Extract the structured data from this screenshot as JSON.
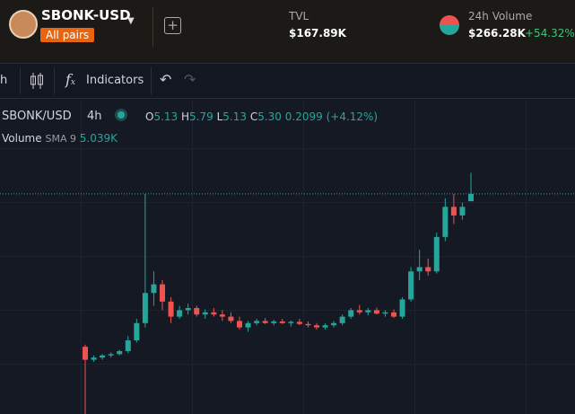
{
  "header": {
    "pair": "SBONK-USD",
    "badge": "All pairs",
    "tvl_label": "TVL",
    "tvl": "$167.89K",
    "volume_label": "24h Volume",
    "volume": "$266.28K",
    "volume_change": "+54.32%"
  },
  "toolbar": {
    "interval": "h",
    "indicators": "Indicators"
  },
  "legend": {
    "symbol": "SBONK/USD",
    "interval": "4h",
    "o_label": "O",
    "o": "5.13",
    "h_label": "H",
    "h": "5.79",
    "l_label": "L",
    "l": "5.13",
    "c_label": "C",
    "c": "5.30",
    "change": "0.2099",
    "change_pct": "(+4.12%)",
    "volume_label": "Volume",
    "sma": "SMA 9",
    "sma_value": "5.039K"
  },
  "chart_data": {
    "type": "candlestick",
    "open": [
      1.75,
      1.45,
      1.5,
      1.55,
      1.58,
      1.65,
      1.9,
      2.3,
      3.0,
      3.2,
      2.8,
      2.45,
      2.6,
      2.65,
      2.5,
      2.55,
      2.5,
      2.45,
      2.35,
      2.2,
      2.3,
      2.35,
      2.3,
      2.34,
      2.3,
      2.33,
      2.28,
      2.25,
      2.2,
      2.25,
      2.3,
      2.45,
      2.6,
      2.55,
      2.6,
      2.52,
      2.55,
      2.45,
      2.85,
      3.5,
      3.6,
      3.5,
      4.3,
      5.0,
      4.8,
      5.13
    ],
    "high": [
      1.8,
      1.55,
      1.58,
      1.62,
      1.68,
      2.0,
      2.4,
      5.3,
      3.5,
      3.3,
      2.9,
      2.7,
      2.75,
      2.7,
      2.62,
      2.65,
      2.6,
      2.55,
      2.45,
      2.35,
      2.4,
      2.42,
      2.38,
      2.4,
      2.36,
      2.4,
      2.34,
      2.3,
      2.3,
      2.35,
      2.5,
      2.65,
      2.72,
      2.65,
      2.66,
      2.6,
      2.62,
      2.9,
      3.6,
      4.0,
      3.8,
      4.4,
      5.2,
      5.3,
      5.1,
      5.79
    ],
    "low": [
      0.19,
      1.4,
      1.45,
      1.5,
      1.55,
      1.6,
      1.85,
      2.2,
      2.7,
      2.6,
      2.3,
      2.4,
      2.5,
      2.45,
      2.4,
      2.45,
      2.35,
      2.3,
      2.15,
      2.1,
      2.25,
      2.28,
      2.25,
      2.28,
      2.22,
      2.25,
      2.2,
      2.15,
      2.15,
      2.2,
      2.25,
      2.4,
      2.5,
      2.48,
      2.5,
      2.45,
      2.42,
      2.4,
      2.8,
      3.3,
      3.4,
      3.45,
      4.2,
      4.6,
      4.7,
      5.13
    ],
    "close": [
      1.45,
      1.5,
      1.55,
      1.58,
      1.65,
      1.9,
      2.3,
      3.0,
      3.2,
      2.8,
      2.45,
      2.6,
      2.65,
      2.5,
      2.55,
      2.5,
      2.45,
      2.35,
      2.2,
      2.3,
      2.35,
      2.3,
      2.34,
      2.3,
      2.33,
      2.28,
      2.25,
      2.2,
      2.25,
      2.3,
      2.45,
      2.6,
      2.55,
      2.6,
      2.52,
      2.55,
      2.45,
      2.85,
      3.5,
      3.6,
      3.5,
      4.3,
      5.0,
      4.8,
      5.0,
      5.3
    ],
    "ylim": [
      0.19,
      7.3
    ],
    "up_color": "#26a69a",
    "down_color": "#ef5350"
  }
}
